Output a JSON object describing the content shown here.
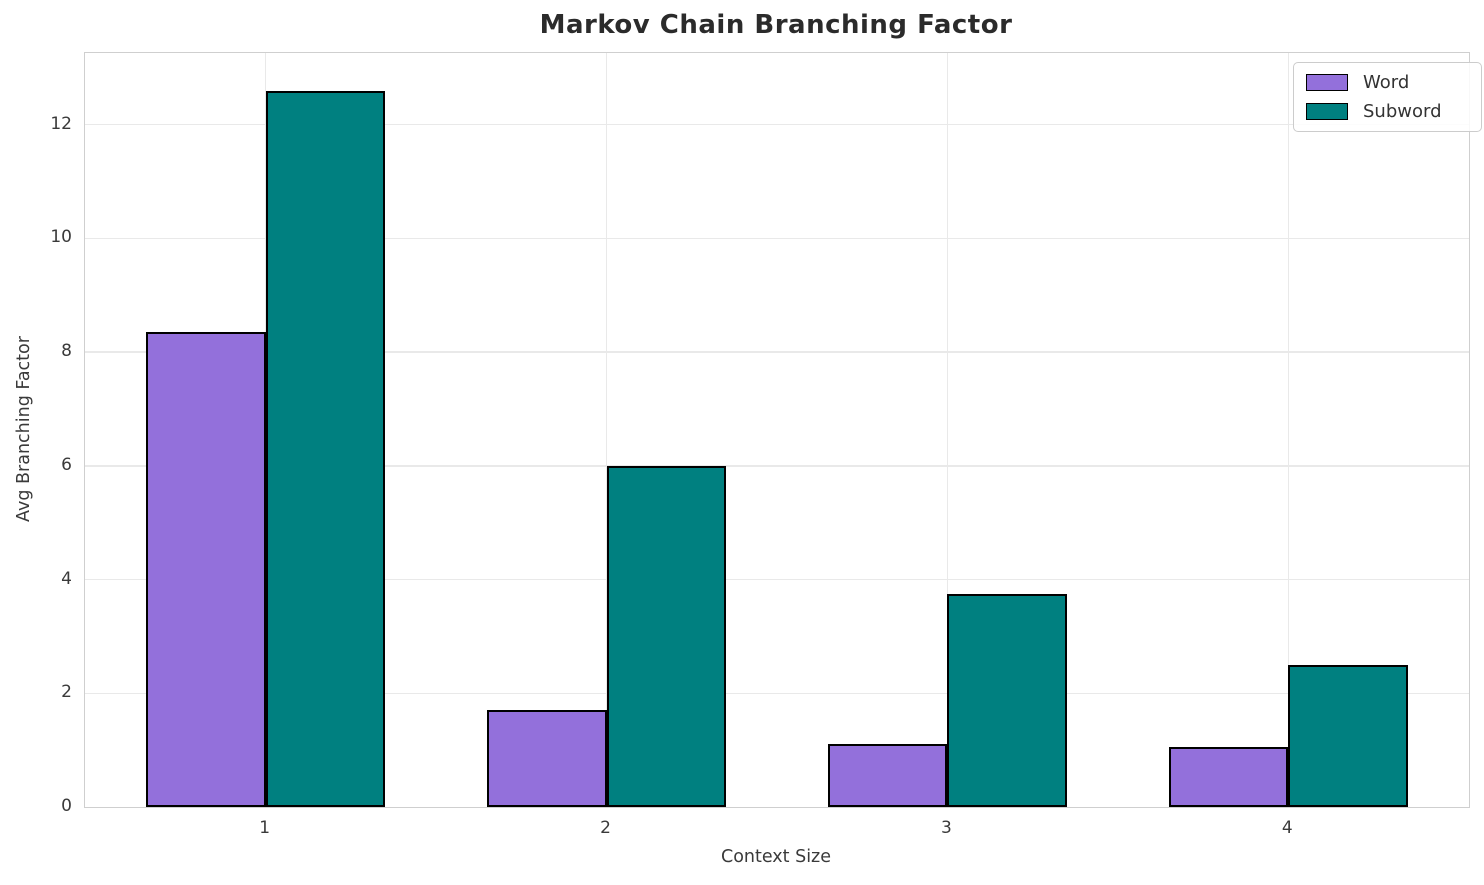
{
  "title": "Markov Chain Branching Factor",
  "colors": {
    "word": "#9370DB",
    "subword": "#008080",
    "bar_edge": "#000000",
    "grid": "#e9e9e9",
    "spine": "#cfcfcf",
    "title_text": "#2b2b2b",
    "axis_text": "#3a3a3a"
  },
  "legend": {
    "position": "upper right",
    "items": [
      {
        "label": "Word",
        "color": "#9370DB"
      },
      {
        "label": "Subword",
        "color": "#008080"
      }
    ]
  },
  "chart_data": {
    "type": "bar",
    "categories": [
      "1",
      "2",
      "3",
      "4"
    ],
    "series": [
      {
        "name": "Word",
        "color": "#9370DB",
        "values": [
          8.35,
          1.7,
          1.1,
          1.05
        ]
      },
      {
        "name": "Subword",
        "color": "#008080",
        "values": [
          12.6,
          6.0,
          3.75,
          2.5
        ]
      }
    ],
    "title": "Markov Chain Branching Factor",
    "xlabel": "Context Size",
    "ylabel": "Avg Branching Factor",
    "ylim": [
      0,
      13.26
    ],
    "yticks": [
      0,
      2,
      4,
      6,
      8,
      10,
      12
    ],
    "xlim": [
      0.47,
      4.53
    ],
    "bar_width": 0.35,
    "grid": true,
    "legend_position": "upper right"
  }
}
